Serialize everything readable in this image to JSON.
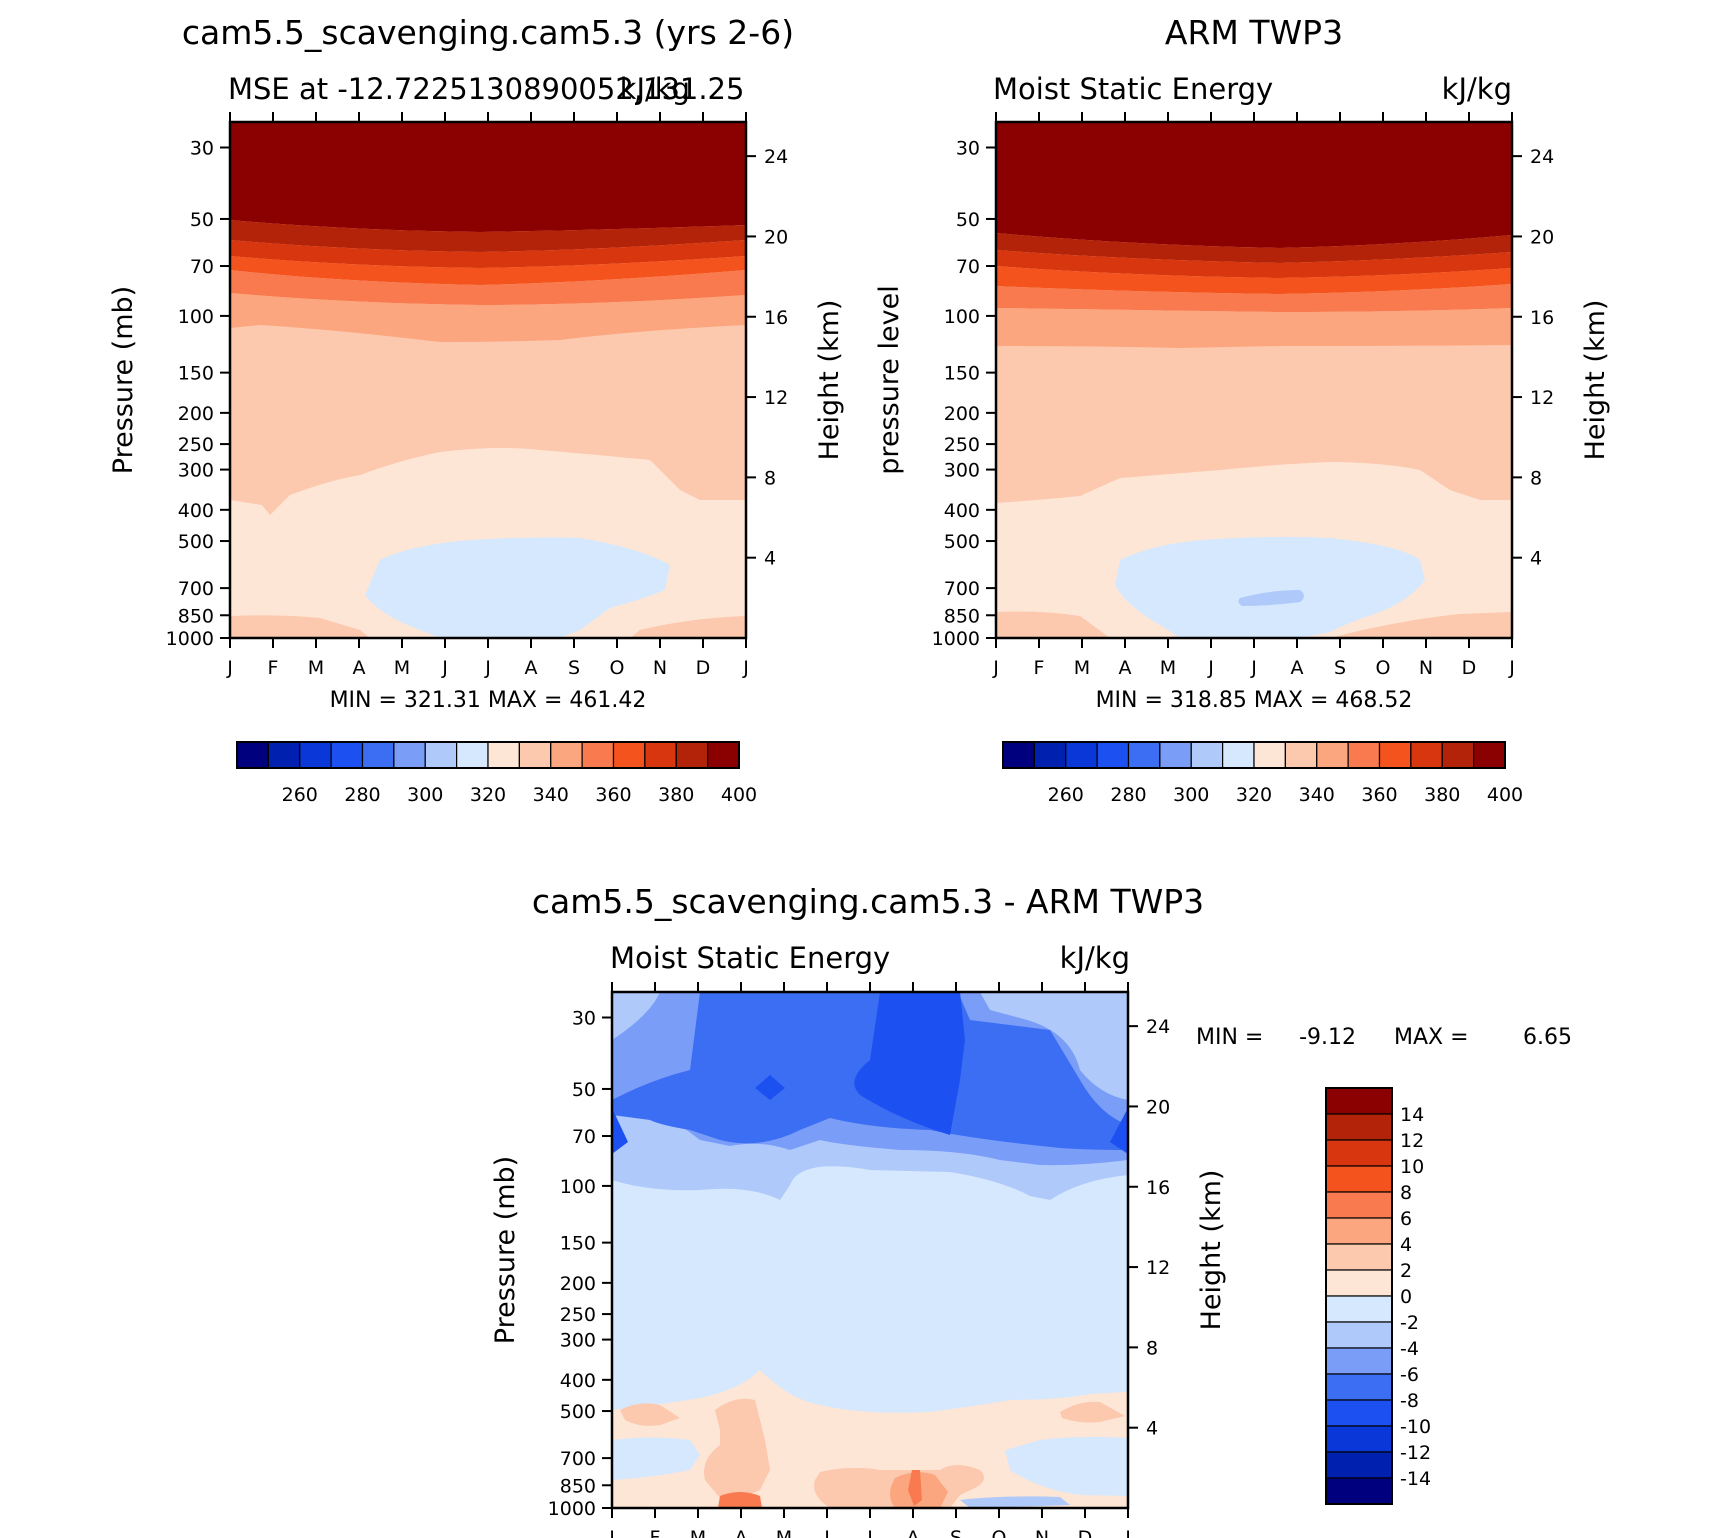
{
  "panels": [
    {
      "id": "model",
      "title": "cam5.5_scavenging.cam5.3 (yrs 2-6)",
      "subtitle_left": "MSE at -12.7225130890052,131.25",
      "subtitle_right": "kJ/kg",
      "ylabel_left": "Pressure (mb)",
      "ylabel_right": "Height (km)",
      "stats": "MIN = 321.31 MAX = 461.42"
    },
    {
      "id": "obs",
      "title": "ARM TWP3",
      "subtitle_left": "Moist Static Energy",
      "subtitle_right": "kJ/kg",
      "ylabel_left": "pressure level",
      "ylabel_right": "Height (km)",
      "stats": "MIN = 318.85 MAX = 468.52"
    },
    {
      "id": "diff",
      "title": "cam5.5_scavenging.cam5.3 - ARM TWP3",
      "subtitle_left": "Moist Static Energy",
      "subtitle_right": "kJ/kg",
      "ylabel_left": "Pressure (mb)",
      "ylabel_right": "Height (km)",
      "stats_min_label": "MIN =",
      "stats_min": "-9.12",
      "stats_max_label": "MAX =",
      "stats_max": "6.65"
    }
  ],
  "colorbars": {
    "abs_labels": [
      "260",
      "280",
      "300",
      "320",
      "340",
      "360",
      "380",
      "400"
    ],
    "diff_labels": [
      "14",
      "12",
      "10",
      "8",
      "6",
      "4",
      "2",
      "0",
      "-2",
      "-4",
      "-6",
      "-8",
      "-10",
      "-12",
      "-14"
    ]
  },
  "chart_data": [
    {
      "type": "heatmap",
      "title": "cam5.5_scavenging.cam5.3 (yrs 2-6)",
      "subtitle": "MSE at -12.7225130890052,131.25",
      "units": "kJ/kg",
      "x_categories": [
        "J",
        "F",
        "M",
        "A",
        "M",
        "J",
        "J",
        "A",
        "S",
        "O",
        "N",
        "D",
        "J"
      ],
      "y_left_label": "Pressure (mb)",
      "y_left_ticks": [
        30,
        50,
        70,
        100,
        150,
        200,
        250,
        300,
        400,
        500,
        700,
        850,
        1000
      ],
      "y_right_label": "Height (km)",
      "y_right_ticks": [
        4,
        8,
        12,
        16,
        20,
        24
      ],
      "contour_levels": [
        250,
        260,
        270,
        280,
        290,
        300,
        310,
        320,
        330,
        340,
        350,
        360,
        370,
        380,
        390,
        400
      ],
      "levels_approx_kJkg": {
        "1000": 345,
        "850": 340,
        "700": 325,
        "500": 330,
        "400": 335,
        "300": 340,
        "200": 345,
        "150": 345,
        "100": 352,
        "70": 372,
        "50": 398,
        "30": 450
      },
      "min": 321.31,
      "max": 461.42
    },
    {
      "type": "heatmap",
      "title": "ARM TWP3",
      "subtitle": "Moist Static Energy",
      "units": "kJ/kg",
      "x_categories": [
        "J",
        "F",
        "M",
        "A",
        "M",
        "J",
        "J",
        "A",
        "S",
        "O",
        "N",
        "D",
        "J"
      ],
      "y_left_label": "pressure level",
      "y_left_ticks": [
        30,
        50,
        70,
        100,
        150,
        200,
        250,
        300,
        400,
        500,
        700,
        850,
        1000
      ],
      "y_right_label": "Height (km)",
      "y_right_ticks": [
        4,
        8,
        12,
        16,
        20,
        24
      ],
      "contour_levels": [
        250,
        260,
        270,
        280,
        290,
        300,
        310,
        320,
        330,
        340,
        350,
        360,
        370,
        380,
        390,
        400
      ],
      "levels_approx_kJkg": {
        "1000": 348,
        "850": 338,
        "700": 322,
        "500": 332,
        "400": 336,
        "300": 342,
        "200": 346,
        "150": 346,
        "100": 356,
        "70": 378,
        "50": 402,
        "30": 455
      },
      "min": 318.85,
      "max": 468.52
    },
    {
      "type": "heatmap",
      "title": "cam5.5_scavenging.cam5.3 - ARM TWP3",
      "subtitle": "Moist Static Energy",
      "units": "kJ/kg",
      "x_categories": [
        "J",
        "F",
        "M",
        "A",
        "M",
        "J",
        "J",
        "A",
        "S",
        "O",
        "N",
        "D",
        "J"
      ],
      "y_left_label": "Pressure (mb)",
      "y_left_ticks": [
        30,
        50,
        70,
        100,
        150,
        200,
        250,
        300,
        400,
        500,
        700,
        850,
        1000
      ],
      "y_right_label": "Height (km)",
      "y_right_ticks": [
        4,
        8,
        12,
        16,
        20,
        24
      ],
      "contour_levels": [
        -14,
        -12,
        -10,
        -8,
        -6,
        -4,
        -2,
        0,
        2,
        4,
        6,
        8,
        10,
        12,
        14
      ],
      "min": -9.12,
      "max": 6.65
    }
  ],
  "palette": {
    "abs": [
      "#00007f",
      "#0020b0",
      "#0a38d8",
      "#1c50f0",
      "#3c6ef4",
      "#7a9ef8",
      "#b0c9fb",
      "#d6e8fd",
      "#fde6d6",
      "#fcc8ae",
      "#fba67f",
      "#f97a4e",
      "#f4531d",
      "#d8360f",
      "#b3230a",
      "#8b0000"
    ],
    "diff": [
      "#00007f",
      "#0020b0",
      "#0a38d8",
      "#1c50f0",
      "#3c6ef4",
      "#7a9ef8",
      "#b0c9fb",
      "#d6e8fd",
      "#fde6d6",
      "#fcc8ae",
      "#fba67f",
      "#f97a4e",
      "#f4531d",
      "#d8360f",
      "#b3230a",
      "#8b0000"
    ]
  }
}
